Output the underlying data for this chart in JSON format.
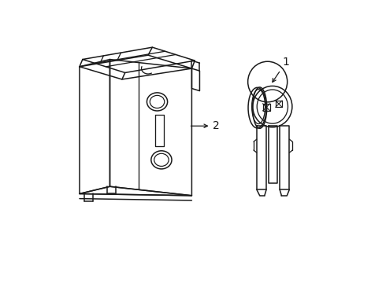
{
  "background_color": "#ffffff",
  "line_color": "#1a1a1a",
  "line_width": 1.1,
  "label_1": "1",
  "label_2": "2",
  "label_fontsize": 10,
  "figsize": [
    4.9,
    3.6
  ],
  "dpi": 100
}
